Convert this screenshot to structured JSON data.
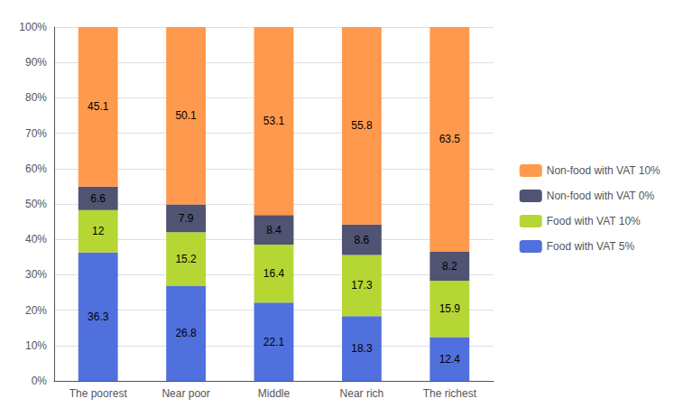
{
  "chart_data": {
    "type": "bar",
    "stacked": true,
    "data_labels": true,
    "grid": true,
    "legend": "right",
    "categories": [
      "The poorest",
      "Near poor",
      "Middle",
      "Near rich",
      "The richest"
    ],
    "series": [
      {
        "name": "Food with VAT 5%",
        "values": [
          36.3,
          26.8,
          22.1,
          18.3,
          12.4
        ]
      },
      {
        "name": "Food with VAT 10%",
        "values": [
          12,
          15.2,
          16.4,
          17.3,
          15.9
        ]
      },
      {
        "name": "Non-food with VAT 0%",
        "values": [
          6.6,
          7.9,
          8.4,
          8.6,
          8.2
        ]
      },
      {
        "name": "Non-food with VAT 10%",
        "values": [
          45.1,
          50.1,
          53.1,
          55.8,
          63.5
        ]
      }
    ],
    "ylim": [
      0,
      100
    ],
    "yticks": [
      {
        "value": 0,
        "label": "0%"
      },
      {
        "value": 10,
        "label": "10%"
      },
      {
        "value": 20,
        "label": "20%"
      },
      {
        "value": 30,
        "label": "30%"
      },
      {
        "value": 40,
        "label": "40%"
      },
      {
        "value": 50,
        "label": "50%"
      },
      {
        "value": 60,
        "label": "60%"
      },
      {
        "value": 70,
        "label": "70%"
      },
      {
        "value": 80,
        "label": "80%"
      },
      {
        "value": 90,
        "label": "90%"
      },
      {
        "value": 100,
        "label": "100%"
      }
    ]
  }
}
